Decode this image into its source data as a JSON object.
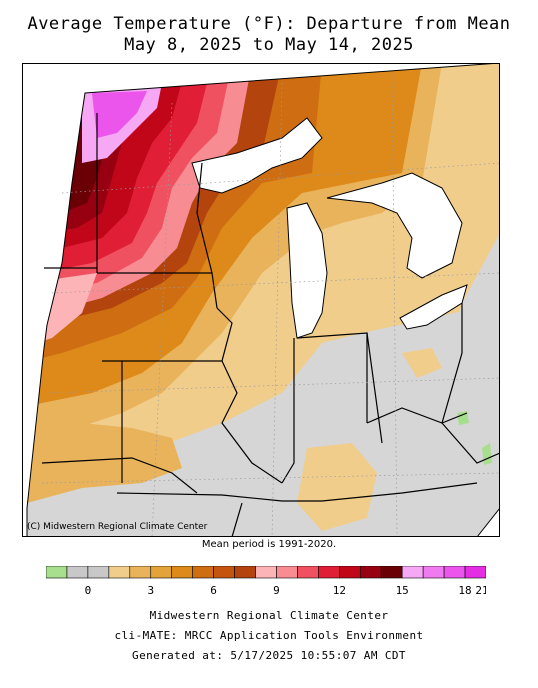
{
  "title_line1": "Average Temperature (°F): Departure from Mean",
  "title_line2": "May 8, 2025 to May 14, 2025",
  "copyright": "(C) Midwestern Regional Climate Center",
  "mean_period": "Mean period is 1991-2020.",
  "legend": {
    "colors": [
      "#a8df8f",
      "#c8c8c8",
      "#c8c8c8",
      "#f1cd8c",
      "#e9b35c",
      "#e3a33a",
      "#dd8a1a",
      "#cf6d12",
      "#c4550e",
      "#b3440e",
      "#fcb4b6",
      "#f78c93",
      "#f05161",
      "#e01e35",
      "#c1061a",
      "#960010",
      "#6a0006",
      "#f6a8f5",
      "#f07bf0",
      "#eb55eb",
      "#e42ee4"
    ],
    "tick_labels": [
      "0",
      "3",
      "6",
      "9",
      "12",
      "15",
      "18",
      "21"
    ]
  },
  "footer_line1": "Midwestern Regional Climate Center",
  "footer_line2": "cli-MATE: MRCC Application Tools Environment",
  "footer_line3": "Generated at: 5/17/2025 10:55:07 AM CDT"
}
